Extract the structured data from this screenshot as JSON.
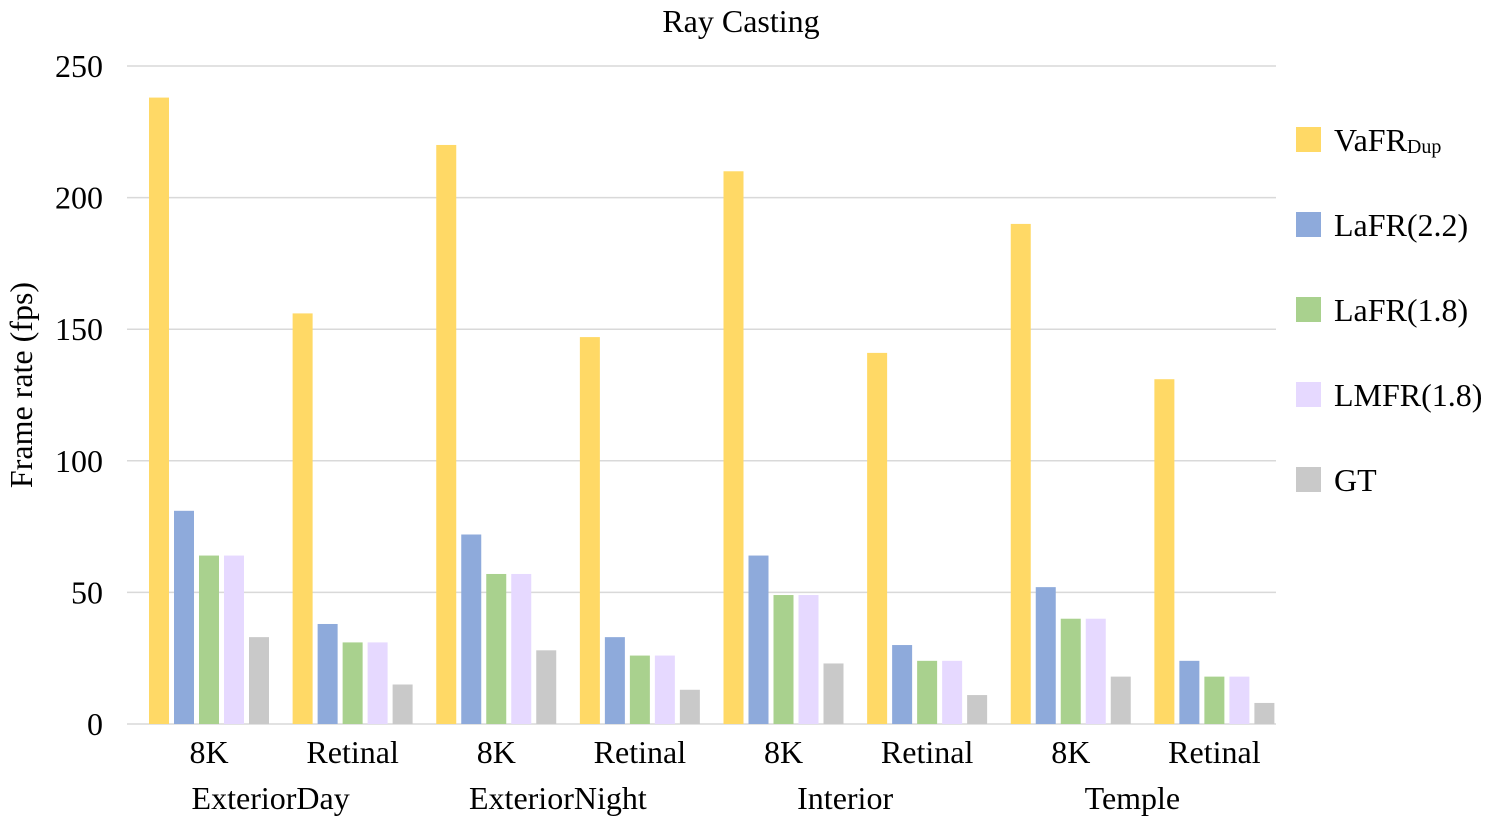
{
  "chart_data": {
    "type": "bar",
    "title": "Ray Casting",
    "ylabel": "Frame rate (fps)",
    "xlabel": "",
    "ylim": [
      0,
      250
    ],
    "yticks": [
      0,
      50,
      100,
      150,
      200,
      250
    ],
    "grid": true,
    "legend_position": "right",
    "groups": [
      "ExteriorDay",
      "ExteriorNight",
      "Interior",
      "Temple"
    ],
    "subgroups": [
      "8K",
      "Retinal"
    ],
    "categories": [
      "ExteriorDay 8K",
      "ExteriorDay Retinal",
      "ExteriorNight 8K",
      "ExteriorNight Retinal",
      "Interior 8K",
      "Interior Retinal",
      "Temple 8K",
      "Temple Retinal"
    ],
    "series": [
      {
        "name": "VaFR",
        "subscript": "Dup",
        "color": "#ffd966",
        "values": [
          238,
          156,
          220,
          147,
          210,
          141,
          190,
          131
        ]
      },
      {
        "name": "LaFR(2.2)",
        "color": "#8eaadb",
        "values": [
          81,
          38,
          72,
          33,
          64,
          30,
          52,
          24
        ]
      },
      {
        "name": "LaFR(1.8)",
        "color": "#a9d18e",
        "values": [
          64,
          31,
          57,
          26,
          49,
          24,
          40,
          18
        ]
      },
      {
        "name": "LMFR(1.8)",
        "color": "#e6d9ff",
        "values": [
          64,
          31,
          57,
          26,
          49,
          24,
          40,
          18
        ]
      },
      {
        "name": "GT",
        "color": "#c9c9c9",
        "values": [
          33,
          15,
          28,
          13,
          23,
          11,
          18,
          8
        ]
      }
    ]
  }
}
